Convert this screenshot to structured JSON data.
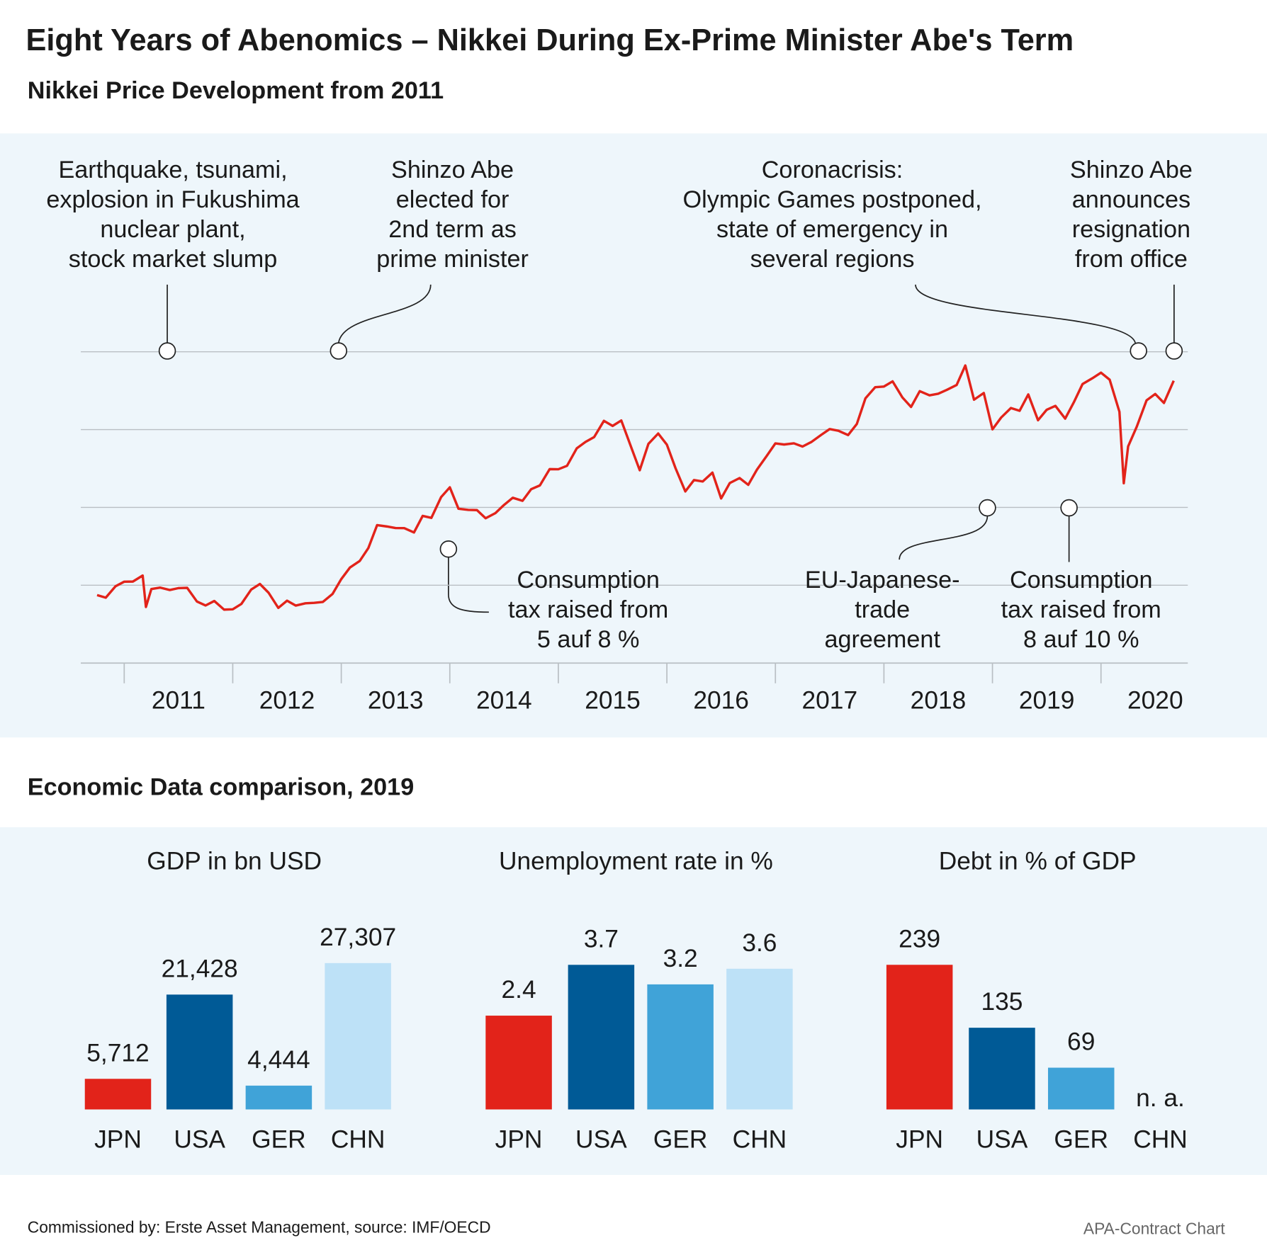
{
  "title": "Eight Years of Abenomics – Nikkei During Ex-Prime Minister Abe's Term",
  "section_title": "Economic Data comparison, 2019",
  "source": "Commissioned by: Erste Asset Management, source: IMF/OECD",
  "credit": "APA-Contract Chart",
  "chart_data": [
    {
      "type": "line",
      "title": "Nikkei Price Development from 2011",
      "color": "#e2231a",
      "grid": true,
      "xlim": [
        2010.6,
        2020.8
      ],
      "ylim": [
        5000,
        25000
      ],
      "yticks": [
        10000,
        15000,
        20000,
        25000
      ],
      "xtick_marks": [
        2011,
        2012,
        2013,
        2014,
        2015,
        2016,
        2017,
        2018,
        2019,
        2020
      ],
      "xticks": [
        {
          "value": 2011.5,
          "label": "2011"
        },
        {
          "value": 2012.5,
          "label": "2012"
        },
        {
          "value": 2013.5,
          "label": "2013"
        },
        {
          "value": 2014.5,
          "label": "2014"
        },
        {
          "value": 2015.5,
          "label": "2015"
        },
        {
          "value": 2016.5,
          "label": "2016"
        },
        {
          "value": 2017.5,
          "label": "2017"
        },
        {
          "value": 2018.5,
          "label": "2018"
        },
        {
          "value": 2019.5,
          "label": "2019"
        },
        {
          "value": 2020.5,
          "label": "2020"
        }
      ],
      "x": [
        2010.75,
        2010.83,
        2010.92,
        2011.0,
        2011.08,
        2011.17,
        2011.2,
        2011.25,
        2011.33,
        2011.42,
        2011.5,
        2011.58,
        2011.67,
        2011.75,
        2011.83,
        2011.92,
        2012.0,
        2012.08,
        2012.17,
        2012.25,
        2012.33,
        2012.42,
        2012.5,
        2012.58,
        2012.67,
        2012.75,
        2012.83,
        2012.92,
        2013.0,
        2013.08,
        2013.17,
        2013.25,
        2013.33,
        2013.42,
        2013.5,
        2013.58,
        2013.67,
        2013.75,
        2013.83,
        2013.92,
        2014.0,
        2014.08,
        2014.17,
        2014.25,
        2014.33,
        2014.42,
        2014.5,
        2014.58,
        2014.67,
        2014.75,
        2014.83,
        2014.92,
        2015.0,
        2015.08,
        2015.17,
        2015.25,
        2015.33,
        2015.42,
        2015.5,
        2015.58,
        2015.67,
        2015.75,
        2015.83,
        2015.92,
        2016.0,
        2016.08,
        2016.17,
        2016.25,
        2016.33,
        2016.42,
        2016.5,
        2016.58,
        2016.67,
        2016.75,
        2016.83,
        2016.92,
        2017.0,
        2017.08,
        2017.17,
        2017.25,
        2017.33,
        2017.42,
        2017.5,
        2017.58,
        2017.67,
        2017.75,
        2017.83,
        2017.92,
        2018.0,
        2018.08,
        2018.17,
        2018.25,
        2018.33,
        2018.42,
        2018.5,
        2018.58,
        2018.67,
        2018.75,
        2018.83,
        2018.92,
        2019.0,
        2019.08,
        2019.17,
        2019.25,
        2019.33,
        2019.42,
        2019.5,
        2019.58,
        2019.67,
        2019.75,
        2019.83,
        2019.92,
        2020.0,
        2020.08,
        2020.17,
        2020.21,
        2020.25,
        2020.33,
        2020.42,
        2020.5,
        2020.58,
        2020.67
      ],
      "values": [
        9369,
        9202,
        9937,
        10229,
        10238,
        10624,
        8605,
        9755,
        9850,
        9694,
        9816,
        9833,
        8955,
        8700,
        8988,
        8434,
        8455,
        8803,
        9723,
        10083,
        9521,
        8543,
        9007,
        8695,
        8840,
        8870,
        8928,
        9446,
        10395,
        11139,
        11559,
        12398,
        13861,
        13775,
        13677,
        13668,
        13389,
        14456,
        14328,
        15662,
        16291,
        14915,
        14841,
        14828,
        14304,
        14632,
        15162,
        15621,
        15425,
        16174,
        16414,
        17460,
        17451,
        17674,
        18798,
        19207,
        19520,
        20563,
        20236,
        20585,
        18890,
        17388,
        19083,
        19747,
        19034,
        17518,
        16027,
        16759,
        16666,
        17235,
        15576,
        16569,
        16887,
        16450,
        17425,
        18308,
        19114,
        19041,
        19119,
        18909,
        19197,
        19651,
        20033,
        19925,
        19646,
        20356,
        22012,
        22725,
        22765,
        23098,
        22068,
        21454,
        22468,
        22202,
        22305,
        22554,
        22865,
        24120,
        21920,
        22351,
        20015,
        20773,
        21385,
        21206,
        22259,
        20601,
        21276,
        21522,
        20704,
        21756,
        22927,
        23294,
        23657,
        23205,
        21143,
        16553,
        18917,
        20194,
        21878,
        22288,
        21710,
        23140
      ],
      "annotations": [
        [
          "Earthquake, tsunami,",
          "explosion in Fukushima",
          "nuclear plant,",
          "stock market slump"
        ],
        [
          "Shinzo Abe",
          "elected for",
          "2nd term as",
          "prime minister"
        ],
        [
          "Coronacrisis:",
          "Olympic Games postponed,",
          "state of emergency in",
          "several regions"
        ],
        [
          "Shinzo Abe",
          "announces",
          "resignation",
          "from office"
        ],
        [
          "Consumption",
          "tax raised from",
          "5 auf 8 %"
        ],
        [
          "EU-Japanese-",
          "trade",
          "agreement"
        ],
        [
          "Consumption",
          "tax raised from",
          "8 auf 10 %"
        ]
      ]
    },
    {
      "type": "bar",
      "title": "GDP in bn USD",
      "categories": [
        "JPN",
        "USA",
        "GER",
        "CHN"
      ],
      "values": [
        5712,
        21428,
        4444,
        27307
      ],
      "value_labels": [
        "5,712",
        "21,428",
        "4,444",
        "27,307"
      ],
      "colors": [
        "#e2231a",
        "#005a96",
        "#40a3d8",
        "#bde1f7"
      ],
      "ylim": [
        0,
        35000
      ]
    },
    {
      "type": "bar",
      "title": "Unemployment rate in %",
      "categories": [
        "JPN",
        "USA",
        "GER",
        "CHN"
      ],
      "values": [
        2.4,
        3.7,
        3.2,
        3.6
      ],
      "colors": [
        "#e2231a",
        "#005a96",
        "#40a3d8",
        "#bde1f7"
      ],
      "ylim": [
        0,
        4.8
      ]
    },
    {
      "type": "bar",
      "title": "Debt in % of GDP",
      "categories": [
        "JPN",
        "USA",
        "GER",
        "CHN"
      ],
      "values": [
        239,
        135,
        69,
        null
      ],
      "value_labels": [
        "239",
        "135",
        "69",
        "n. a."
      ],
      "colors": [
        "#e2231a",
        "#005a96",
        "#40a3d8",
        "#bde1f7"
      ],
      "ylim": [
        0,
        310
      ]
    }
  ]
}
